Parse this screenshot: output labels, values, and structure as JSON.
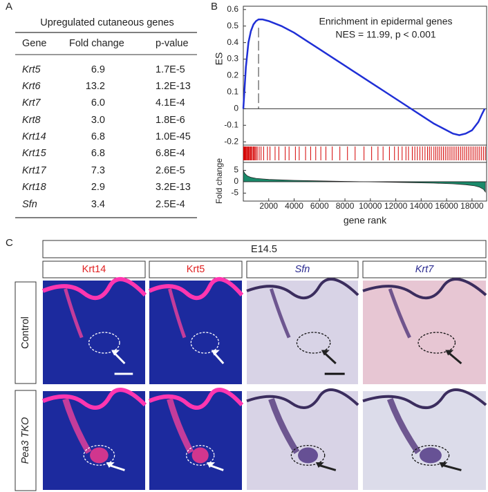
{
  "panel_a": {
    "label": "A",
    "title": "Upregulated cutaneous genes",
    "headers": [
      "Gene",
      "Fold change",
      "p-value"
    ],
    "rows": [
      [
        "Krt5",
        "6.9",
        "1.7E-5"
      ],
      [
        "Krt6",
        "13.2",
        "1.2E-13"
      ],
      [
        "Krt7",
        "6.0",
        "4.1E-4"
      ],
      [
        "Krt8",
        "3.0",
        "1.8E-6"
      ],
      [
        "Krt14",
        "6.8",
        "1.0E-45"
      ],
      [
        "Krt15",
        "6.8",
        "6.8E-4"
      ],
      [
        "Krt17",
        "7.3",
        "2.6E-5"
      ],
      [
        "Krt18",
        "2.9",
        "3.2E-13"
      ],
      [
        "Sfn",
        "3.4",
        "2.5E-4"
      ]
    ]
  },
  "panel_b": {
    "label": "B",
    "annotation": "Enrichment in epidermal genes",
    "stats": "NES = 11.99,  p < 0.001",
    "y_label": "ES",
    "y2_label": "Fold change",
    "x_label": "gene rank",
    "xlim": [
      0,
      19150
    ],
    "xticks": [
      2000,
      4000,
      6000,
      8000,
      10000,
      12000,
      14000,
      16000,
      18000
    ],
    "ylim": [
      -0.22,
      0.62
    ],
    "yticks": [
      -0.2,
      -0.1,
      0,
      0.1,
      0.2,
      0.3,
      0.4,
      0.5,
      0.6
    ],
    "y2lim": [
      -8.5,
      8.5
    ],
    "y2ticks": [
      -5,
      0,
      5
    ],
    "curve_color": "#1f2fd6",
    "hit_color": "#d40000",
    "fold_color": "#1a8a6a",
    "es_curve": {
      "x": [
        0,
        100,
        200,
        400,
        600,
        800,
        1000,
        1200,
        1500,
        2000,
        3000,
        4000,
        5000,
        6000,
        7000,
        8000,
        9000,
        10000,
        11000,
        12000,
        13000,
        14000,
        15000,
        16000,
        16500,
        17000,
        17500,
        18000,
        18500,
        18800,
        19000
      ],
      "values": [
        0,
        0.12,
        0.25,
        0.4,
        0.47,
        0.51,
        0.53,
        0.54,
        0.54,
        0.53,
        0.5,
        0.46,
        0.41,
        0.36,
        0.31,
        0.26,
        0.21,
        0.16,
        0.11,
        0.06,
        0.01,
        -0.04,
        -0.09,
        -0.13,
        -0.15,
        -0.16,
        -0.15,
        -0.13,
        -0.08,
        -0.03,
        0
      ]
    },
    "peak_rank": 1200,
    "hits": [
      20,
      60,
      110,
      150,
      200,
      260,
      320,
      380,
      430,
      500,
      560,
      620,
      700,
      780,
      850,
      920,
      1000,
      1100,
      1250,
      1400,
      1600,
      1900,
      2100,
      2500,
      2800,
      3300,
      3600,
      4100,
      4400,
      4900,
      5300,
      5700,
      6100,
      6500,
      7000,
      7600,
      8200,
      8800,
      9500,
      10100,
      10600,
      11000,
      11500,
      11900,
      12200,
      12500,
      12800,
      13000,
      13300,
      13500,
      13700,
      13900,
      14100,
      14300,
      14500,
      14650,
      14800,
      15000,
      15150,
      15300,
      15450,
      15600,
      15750,
      15900,
      16050,
      16200,
      16350,
      16500,
      16650,
      16800,
      16950,
      17100,
      17250,
      17400,
      17550,
      17700,
      17850,
      18000,
      18150,
      18300,
      18450,
      18600,
      18750,
      18900,
      19050
    ],
    "fold_curve": {
      "x": [
        0,
        100,
        300,
        600,
        1000,
        2000,
        4000,
        6000,
        8000,
        9500,
        11000,
        13000,
        15000,
        16500,
        17500,
        18200,
        18600,
        18900,
        19050
      ],
      "values": [
        5,
        3.8,
        2.6,
        1.9,
        1.5,
        1.0,
        0.6,
        0.35,
        0.15,
        0,
        -0.15,
        -0.35,
        -0.6,
        -0.9,
        -1.3,
        -1.8,
        -2.4,
        -3.3,
        -4.5
      ]
    }
  },
  "panel_c": {
    "label": "C",
    "stage": "E14.5",
    "columns": [
      {
        "text": "Krt14",
        "color": "#e02020",
        "italic": false,
        "stain": "fluor"
      },
      {
        "text": "Krt5",
        "color": "#e02020",
        "italic": false,
        "stain": "fluor"
      },
      {
        "text": "Sfn",
        "color": "#2a2a90",
        "italic": true,
        "stain": "ish"
      },
      {
        "text": "Krt7",
        "color": "#2a2a90",
        "italic": true,
        "stain": "ish-pink"
      }
    ],
    "rows": [
      "Control",
      "Pea3 TKO"
    ]
  }
}
